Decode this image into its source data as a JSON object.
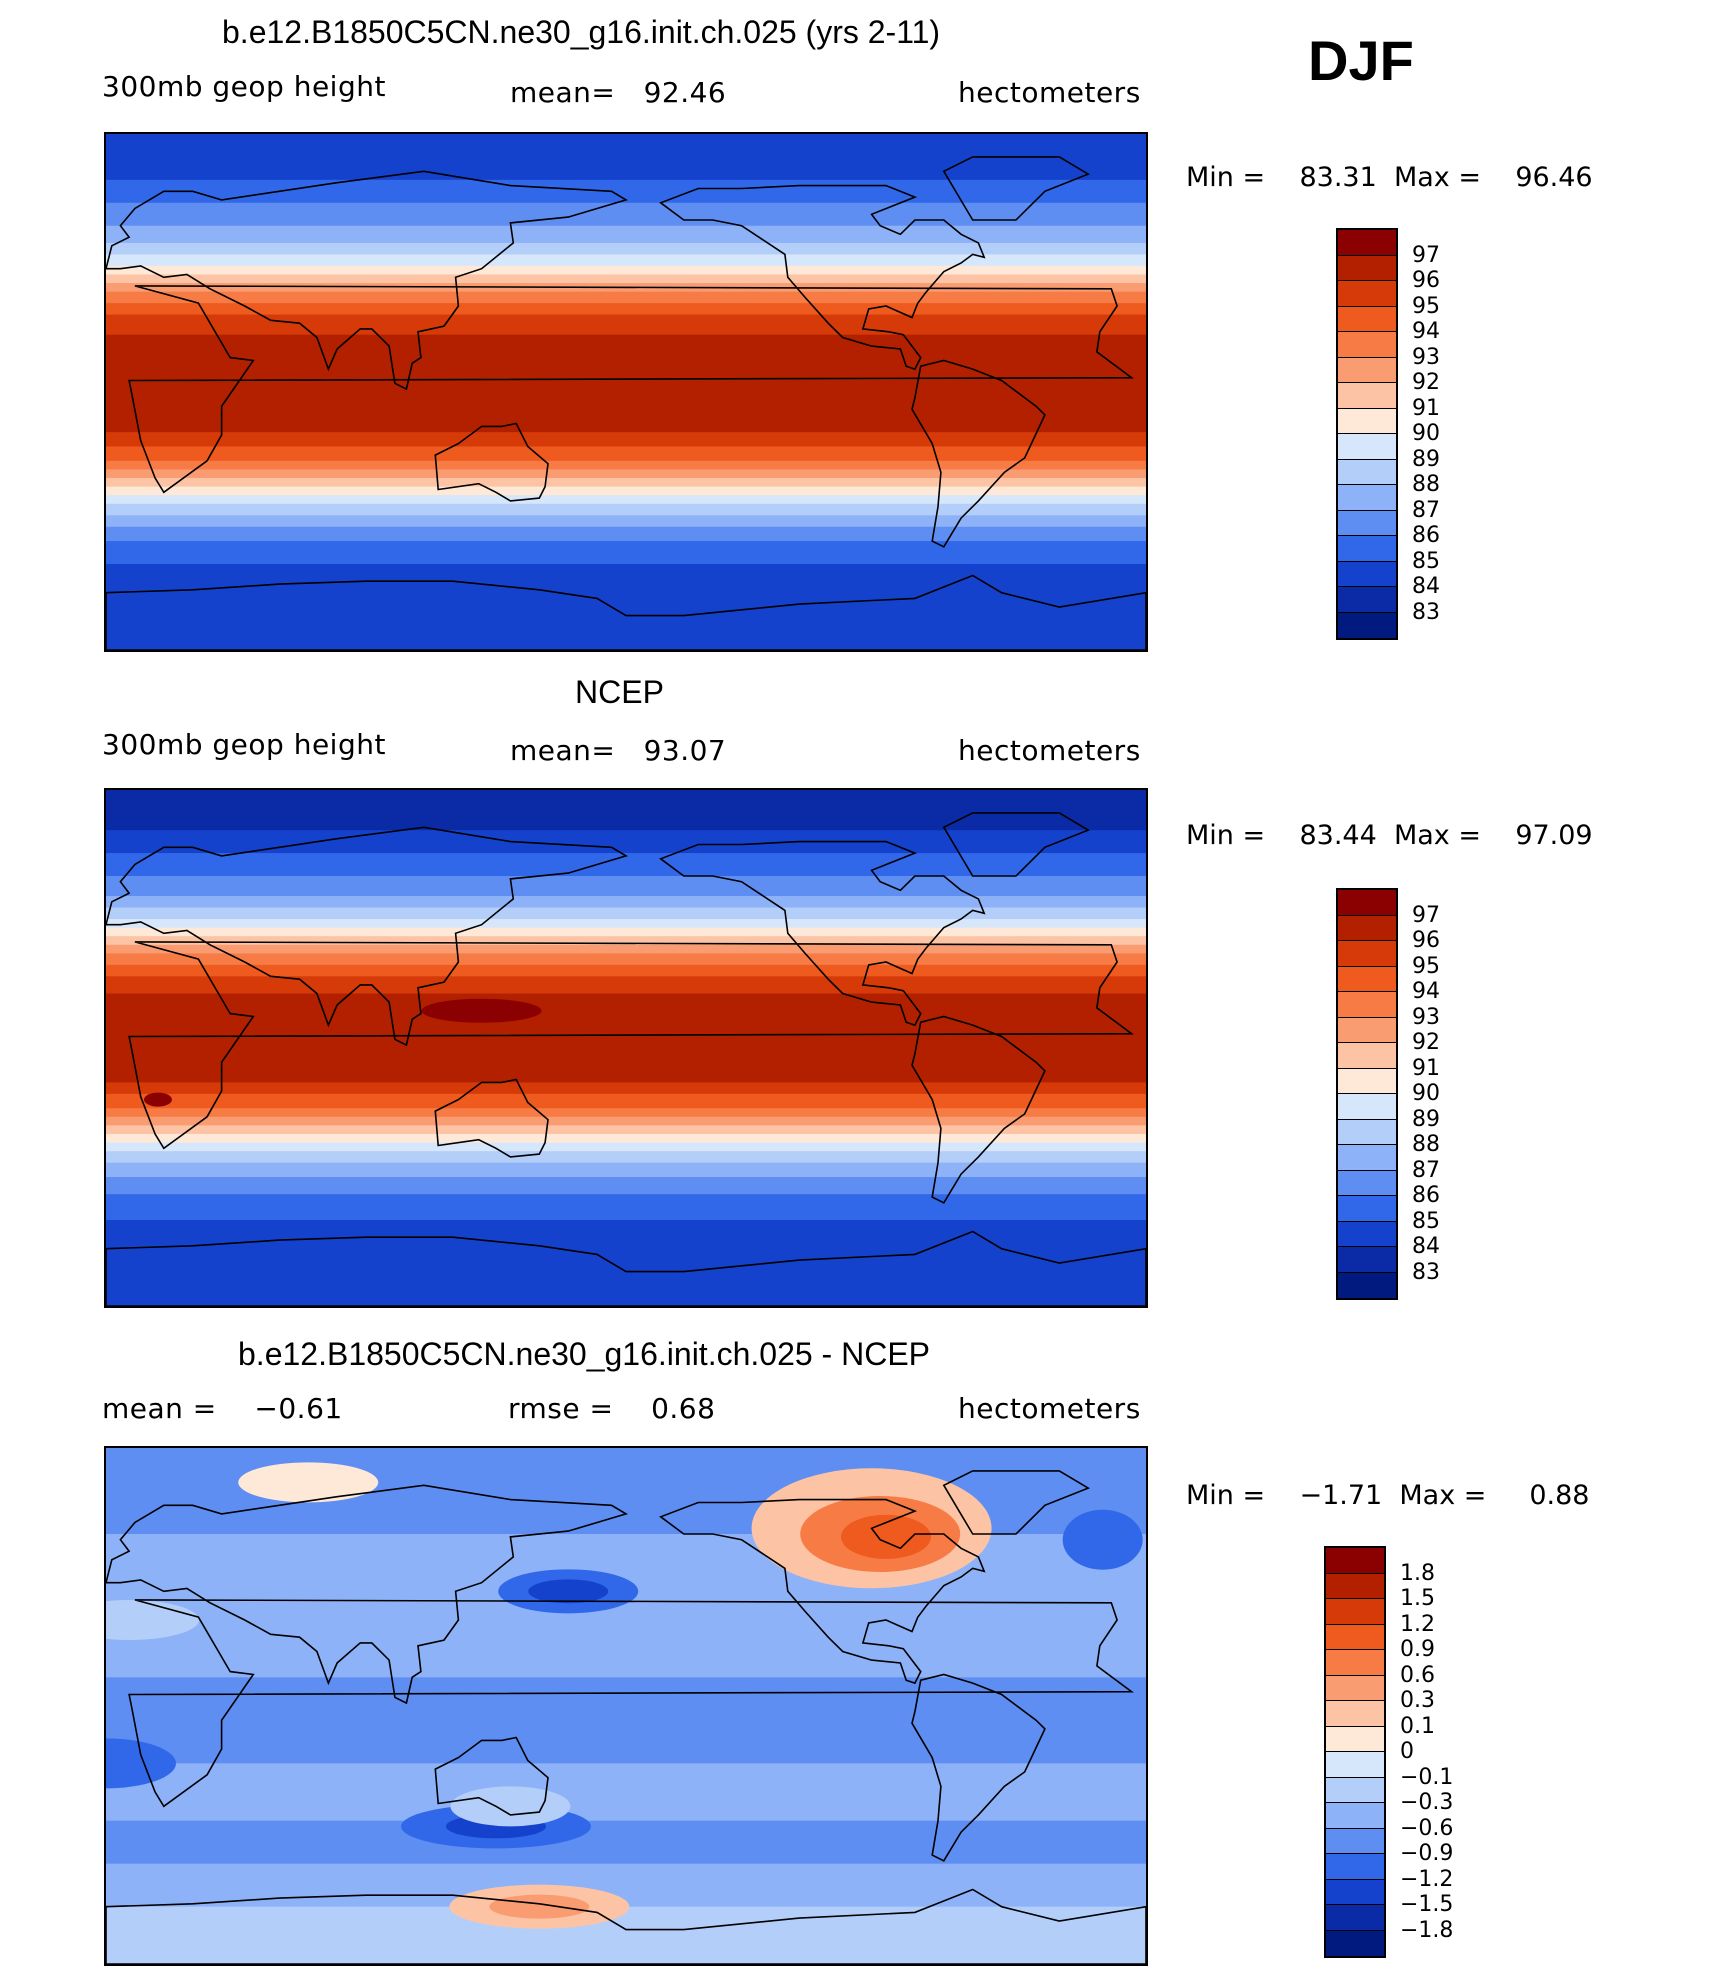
{
  "season": "DJF",
  "chart_data": [
    {
      "type": "heatmap",
      "id": "model",
      "title": "b.e12.B1850C5CN.ne30_g16.init.ch.025 (yrs 2-11)",
      "variable": "300mb geop height",
      "stat_label": "mean=",
      "stat_value": "92.46",
      "units": "hectometers",
      "min_label": "Min =",
      "min_value": "83.31",
      "max_label": "Max =",
      "max_value": "96.46",
      "levels": [
        "97",
        "96",
        "95",
        "94",
        "93",
        "92",
        "91",
        "90",
        "89",
        "88",
        "87",
        "86",
        "85",
        "84",
        "83"
      ],
      "min": 83.31,
      "max": 96.46,
      "mean": 92.46,
      "field_description": "zonal bands: ~95-96 in tropics, decreasing to ~84-85 near poles"
    },
    {
      "type": "heatmap",
      "id": "obs",
      "title": "NCEP",
      "variable": "300mb geop height",
      "stat_label": "mean=",
      "stat_value": "93.07",
      "units": "hectometers",
      "min_label": "Min =",
      "min_value": "83.44",
      "max_label": "Max =",
      "max_value": "97.09",
      "levels": [
        "97",
        "96",
        "95",
        "94",
        "93",
        "92",
        "91",
        "90",
        "89",
        "88",
        "87",
        "86",
        "85",
        "84",
        "83"
      ],
      "min": 83.44,
      "max": 97.09,
      "mean": 93.07
    },
    {
      "type": "heatmap",
      "id": "diff",
      "title": "b.e12.B1850C5CN.ne30_g16.init.ch.025 - NCEP",
      "stat1_label": "mean =",
      "stat1_value": "−0.61",
      "stat2_label": "rmse =",
      "stat2_value": "0.68",
      "units": "hectometers",
      "min_label": "Min =",
      "min_value": "−1.71",
      "max_label": "Max =",
      "max_value": "0.88",
      "levels": [
        "1.8",
        "1.5",
        "1.2",
        "0.9",
        "0.6",
        "0.3",
        "0.1",
        "0",
        "−0.1",
        "−0.3",
        "−0.6",
        "−0.9",
        "−1.2",
        "−1.5",
        "−1.8"
      ],
      "min": -1.71,
      "max": 0.88,
      "mean": -0.61,
      "rmse": 0.68
    }
  ],
  "palette": [
    "#8b0000",
    "#b22000",
    "#d63a08",
    "#ef5a1e",
    "#f77b45",
    "#fa9c72",
    "#fcc4a4",
    "#fee9d8",
    "#d6e6fb",
    "#b4cefa",
    "#8eb2f7",
    "#5f8ef2",
    "#3168ea",
    "#1442cc",
    "#0a2aa6",
    "#001a80"
  ]
}
